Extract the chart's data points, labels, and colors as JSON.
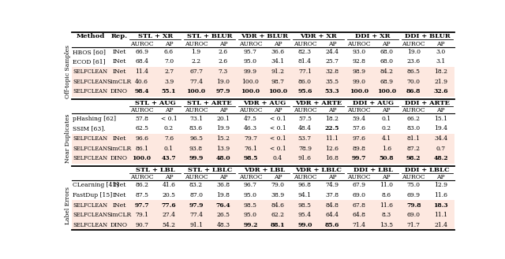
{
  "sections": [
    {
      "label": "Off-topic Samples",
      "col_groups": [
        "STL + XR",
        "STL + BLUR",
        "VDR + BLUR",
        "VDR + XR",
        "DDI + XR",
        "DDI + BLUR"
      ],
      "show_method_rep_header": true,
      "rows": [
        {
          "method": "HBOS [60]",
          "rep": "INet",
          "shaded": false,
          "bold": [],
          "data": [
            "66.9",
            "6.6",
            "1.9",
            "2.6",
            "95.7",
            "36.6",
            "82.3",
            "24.4",
            "93.0",
            "68.0",
            "19.0",
            "3.0"
          ]
        },
        {
          "method": "ECOD [61]",
          "rep": "INet",
          "shaded": false,
          "bold": [],
          "data": [
            "68.4",
            "7.0",
            "2.2",
            "2.6",
            "95.0",
            "34.1",
            "81.4",
            "25.7",
            "92.8",
            "68.0",
            "23.6",
            "3.1"
          ]
        },
        {
          "method": "SelfClean",
          "rep": "INet",
          "shaded": true,
          "bold": [],
          "data": [
            "11.4",
            "2.7",
            "67.7",
            "7.3",
            "99.9",
            "91.2",
            "77.1",
            "32.8",
            "98.9",
            "84.2",
            "86.5",
            "18.2"
          ]
        },
        {
          "method": "SelfClean",
          "rep": "SimCLR",
          "shaded": true,
          "bold": [],
          "data": [
            "40.6",
            "3.9",
            "77.4",
            "19.0",
            "100.0",
            "98.7",
            "86.0",
            "35.5",
            "99.0",
            "68.9",
            "70.0",
            "21.9"
          ]
        },
        {
          "method": "SelfClean",
          "rep": "DINO",
          "shaded": true,
          "bold": [
            0,
            1,
            2,
            3,
            4,
            5,
            6,
            7,
            8,
            9,
            10,
            11
          ],
          "data": [
            "98.4",
            "55.1",
            "100.0",
            "97.9",
            "100.0",
            "100.0",
            "95.6",
            "53.3",
            "100.0",
            "100.0",
            "86.8",
            "32.6"
          ]
        }
      ]
    },
    {
      "label": "Near Duplicates",
      "col_groups": [
        "STL + AUG",
        "STL + ARTE",
        "VDR + AUG",
        "VDR + ARTE",
        "DDI + AUG",
        "DDI + ARTE"
      ],
      "show_method_rep_header": false,
      "rows": [
        {
          "method": "pHashing [62]",
          "rep": "",
          "shaded": false,
          "bold": [],
          "data": [
            "57.8",
            "< 0.1",
            "73.1",
            "20.1",
            "47.5",
            "< 0.1",
            "57.5",
            "18.2",
            "59.4",
            "0.1",
            "66.2",
            "15.1"
          ]
        },
        {
          "method": "SSIM [63].",
          "rep": "",
          "shaded": false,
          "bold": [
            7
          ],
          "data": [
            "62.5",
            "0.2",
            "83.6",
            "19.9",
            "46.3",
            "< 0.1",
            "48.4",
            "22.5",
            "57.6",
            "0.2",
            "83.0",
            "19.4"
          ]
        },
        {
          "method": "SelfClean",
          "rep": "INet",
          "shaded": true,
          "bold": [],
          "data": [
            "96.6",
            "7.6",
            "96.5",
            "15.2",
            "79.7",
            "< 0.1",
            "53.7",
            "11.1",
            "97.6",
            "4.1",
            "81.1",
            "34.4"
          ]
        },
        {
          "method": "SelfClean",
          "rep": "SimCLR",
          "shaded": true,
          "bold": [],
          "data": [
            "86.1",
            "0.1",
            "93.8",
            "13.9",
            "76.1",
            "< 0.1",
            "78.9",
            "12.6",
            "89.8",
            "1.6",
            "87.2",
            "0.7"
          ]
        },
        {
          "method": "SelfClean",
          "rep": "DINO",
          "shaded": true,
          "bold": [
            0,
            1,
            2,
            3,
            4,
            8,
            9,
            10,
            11
          ],
          "data": [
            "100.0",
            "43.7",
            "99.9",
            "48.0",
            "98.5",
            "0.4",
            "91.6",
            "16.8",
            "99.7",
            "50.8",
            "98.2",
            "48.2"
          ]
        }
      ]
    },
    {
      "label": "Label Errors",
      "col_groups": [
        "STL + LBL",
        "STL + LBLC",
        "VDR + LBL",
        "VDR + LBLC",
        "DDI + LBL",
        "DDI + LBLC"
      ],
      "show_method_rep_header": false,
      "rows": [
        {
          "method": "CLearning [41]",
          "rep": "INet",
          "shaded": false,
          "bold": [],
          "data": [
            "86.2",
            "41.6",
            "83.2",
            "36.8",
            "96.7",
            "79.0",
            "96.8",
            "74.9",
            "67.9",
            "11.0",
            "75.0",
            "12.9"
          ]
        },
        {
          "method": "FastDup [15]",
          "rep": "INet",
          "shaded": false,
          "bold": [],
          "data": [
            "87.5",
            "20.5",
            "87.0",
            "19.8",
            "95.0",
            "38.9",
            "94.1",
            "37.8",
            "69.0",
            "8.6",
            "69.9",
            "11.6"
          ]
        },
        {
          "method": "SelfClean",
          "rep": "INet",
          "shaded": true,
          "bold": [
            0,
            1,
            2,
            3,
            10,
            11
          ],
          "data": [
            "97.7",
            "77.6",
            "97.9",
            "76.4",
            "98.5",
            "84.6",
            "98.5",
            "84.8",
            "67.8",
            "11.6",
            "79.8",
            "18.3"
          ]
        },
        {
          "method": "SelfClean",
          "rep": "SimCLR",
          "shaded": true,
          "bold": [],
          "data": [
            "79.1",
            "27.4",
            "77.4",
            "26.5",
            "95.0",
            "62.2",
            "95.4",
            "64.4",
            "64.8",
            "8.3",
            "69.0",
            "11.1"
          ]
        },
        {
          "method": "SelfClean",
          "rep": "DINO",
          "shaded": true,
          "bold": [
            4,
            5,
            6,
            7
          ],
          "data": [
            "90.7",
            "54.2",
            "91.1",
            "48.3",
            "99.2",
            "88.1",
            "99.0",
            "85.6",
            "71.4",
            "13.5",
            "71.7",
            "21.4"
          ]
        }
      ]
    }
  ],
  "shaded_color": "#fde8e0",
  "bg_color": "#ffffff",
  "font_size": 5.5,
  "header_font_size": 6.0
}
